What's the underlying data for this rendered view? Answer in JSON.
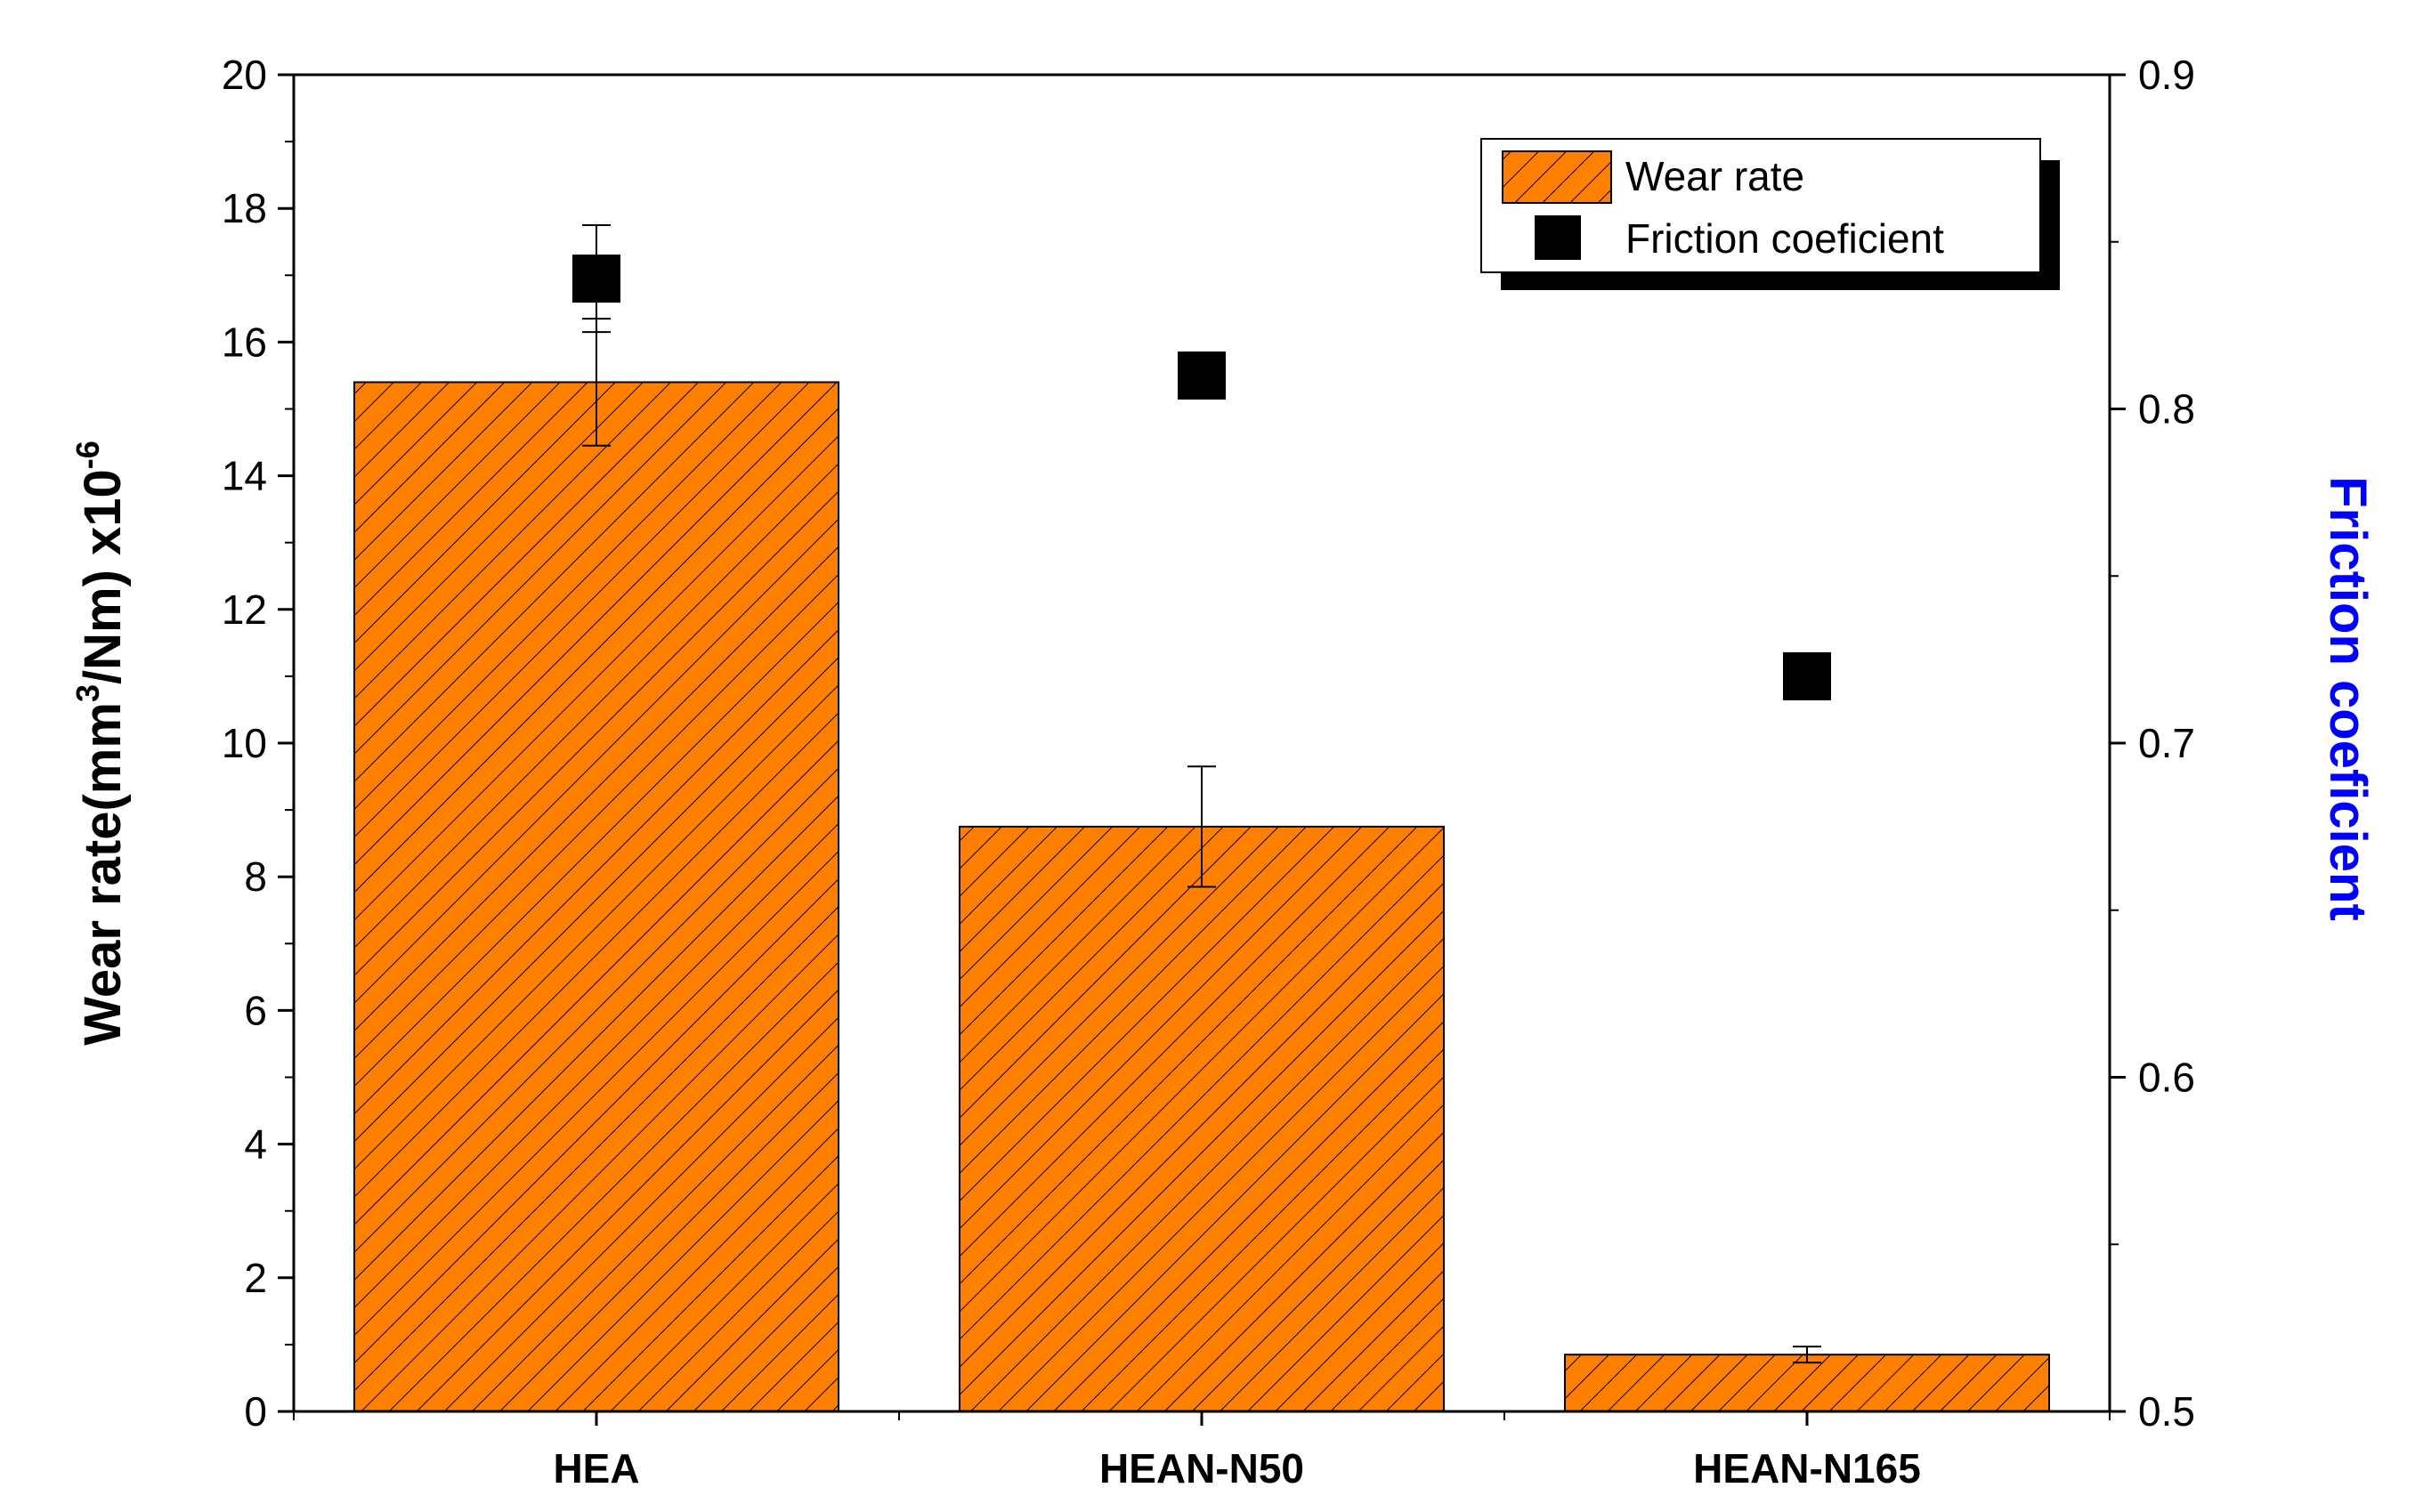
{
  "chart_data": {
    "type": "bar",
    "categories": [
      "HEA",
      "HEAN-N50",
      "HEAN-N165"
    ],
    "series": [
      {
        "name": "Wear rate",
        "axis": "left",
        "kind": "bar",
        "values": [
          15.4,
          8.75,
          0.85
        ],
        "errors": [
          0.95,
          0.9,
          0.12
        ],
        "color": "#ff8000",
        "hatch": "diagonal"
      },
      {
        "name": "Friction coeficient",
        "axis": "right",
        "kind": "scatter",
        "marker": "square",
        "values": [
          0.839,
          0.81,
          0.72
        ],
        "errors": [
          0.016,
          0.006,
          0.005
        ],
        "color": "#000000"
      }
    ],
    "y_left": {
      "label_main": "Wear rate(mm",
      "label_sup1": "3",
      "label_mid": "/Nm) x10",
      "label_sup2": "-6",
      "lim": [
        0,
        20
      ],
      "ticks": [
        "0",
        "2",
        "4",
        "6",
        "8",
        "10",
        "12",
        "14",
        "16",
        "18",
        "20"
      ]
    },
    "y_right": {
      "label": "Friction coeficient",
      "label_color": "#0000ff",
      "lim": [
        0.5,
        0.9
      ],
      "ticks": [
        "0.5",
        "0.6",
        "0.7",
        "0.8",
        "0.9"
      ]
    },
    "legend": {
      "position": "top-right",
      "entries": [
        "Wear rate",
        "Friction coeficient"
      ]
    },
    "grid": false
  }
}
